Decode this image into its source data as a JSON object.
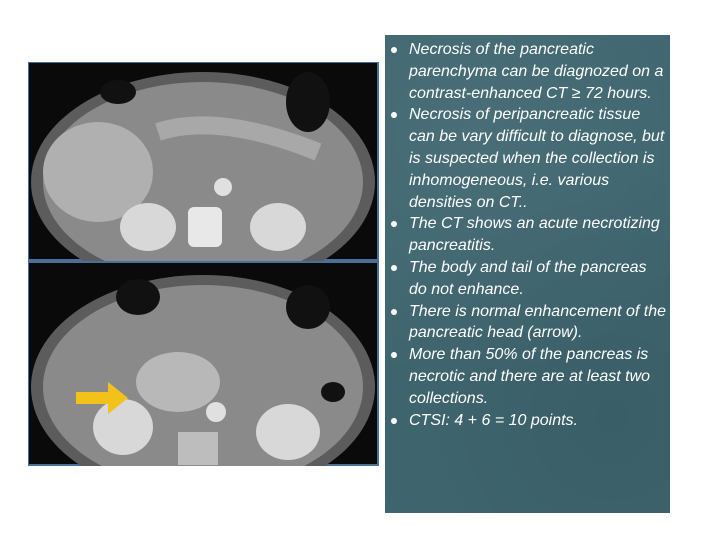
{
  "bullets": [
    "Necrosis of the pancreatic parenchyma can be diagnozed on a contrast-enhanced CT ≥ 72 hours.",
    "Necrosis of peripancreatic tissue can be vary difficult to diagnose, but is suspected when the collection is inhomogeneous, i.e. various densities on CT..",
    "The CT shows an acute necrotizing pancreatitis.",
    "The body and tail of the pancreas do not enhance.",
    "There is normal enhancement of the pancreatic head (arrow).",
    "More than 50% of the pancreas is necrotic and there are at least two collections.",
    "CTSI: 4 + 6 = 10 points."
  ]
}
